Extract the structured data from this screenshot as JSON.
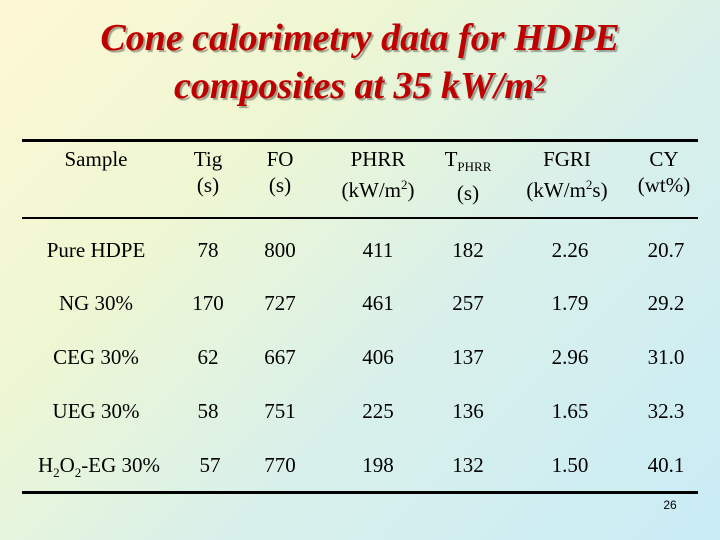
{
  "title": {
    "line1": "Cone calorimetry data for HDPE",
    "line2": "composites at 35 kW/m",
    "line2_sup": "2"
  },
  "headers": {
    "sample": "Sample",
    "tig": "Tig",
    "tig_unit": "(s)",
    "fo": "FO",
    "fo_unit": "(s)",
    "phrr": "PHRR",
    "phrr_unit_pre": "(kW/m",
    "phrr_unit_sup": "2",
    "phrr_unit_post": ")",
    "tphrr": "T",
    "tphrr_sub": "PHRR",
    "tphrr_unit": "(s)",
    "fgri": "FGRI",
    "fgri_unit_pre": "(kW/m",
    "fgri_unit_sup": "2",
    "fgri_unit_post": "s)",
    "cy": "CY",
    "cy_unit": "(wt%)"
  },
  "rows": [
    {
      "sample": "Pure HDPE",
      "tig": "78",
      "fo": "800",
      "phrr": "411",
      "tphrr": "182",
      "fgri": "2.26",
      "cy": "20.7"
    },
    {
      "sample": "NG 30%",
      "tig": "170",
      "fo": "727",
      "phrr": "461",
      "tphrr": "257",
      "fgri": "1.79",
      "cy": "29.2"
    },
    {
      "sample": "CEG 30%",
      "tig": "62",
      "fo": "667",
      "phrr": "406",
      "tphrr": "137",
      "fgri": "2.96",
      "cy": "31.0"
    },
    {
      "sample": "UEG 30%",
      "tig": "58",
      "fo": "751",
      "phrr": "225",
      "tphrr": "136",
      "fgri": "1.65",
      "cy": "32.3"
    },
    {
      "sample_pre": "H",
      "sample_sub1": "2",
      "sample_mid": "O",
      "sample_sub2": "2",
      "sample_post": "-EG 30%",
      "tig": "57",
      "fo": "770",
      "phrr": "198",
      "tphrr": "132",
      "fgri": "1.50",
      "cy": "40.1"
    }
  ],
  "page_number": "26",
  "colors": {
    "title": "#c00000"
  }
}
